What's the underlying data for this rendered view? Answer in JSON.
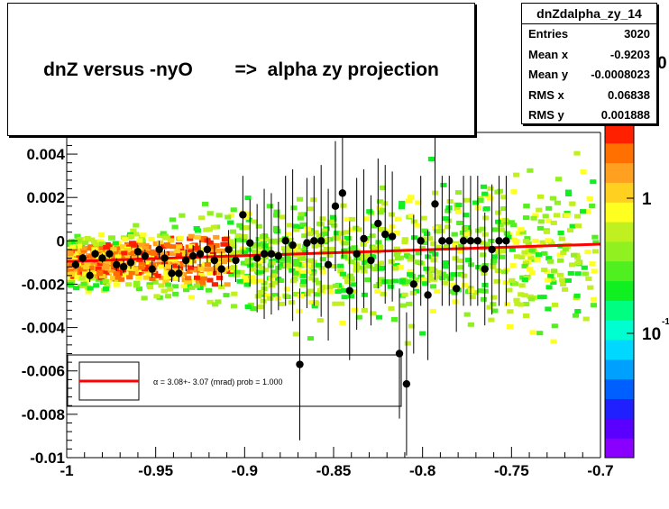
{
  "title": "dnZ versus -nyO        =>  alpha zy projection",
  "stats": {
    "name": "dnZdalpha_zy_14",
    "rows": [
      {
        "label": "Entries",
        "value": "3020"
      },
      {
        "label": "Mean x",
        "value": "-0.9203"
      },
      {
        "label": "Mean y",
        "value": "-0.0008023"
      },
      {
        "label": "RMS x",
        "value": "0.06838"
      },
      {
        "label": "RMS y",
        "value": "0.001888"
      }
    ]
  },
  "colors": {
    "fit_line": "#ff0000",
    "points": "#000000",
    "palette": [
      "#8a00ff",
      "#5a00ff",
      "#2020ff",
      "#0060ff",
      "#00a0ff",
      "#00d8ff",
      "#00ffd0",
      "#00ff80",
      "#10f020",
      "#50f020",
      "#90f020",
      "#c0f020",
      "#ffff20",
      "#ffd020",
      "#ffa020",
      "#ff7000",
      "#ff2000"
    ]
  },
  "chart_data": {
    "type": "scatter",
    "subtype": "2D histogram (colz) with profile points and linear fit",
    "xlim": [
      -1,
      -0.7
    ],
    "ylim": [
      -0.01,
      0.005
    ],
    "xticks": [
      -1,
      -0.95,
      -0.9,
      -0.85,
      -0.8,
      -0.75,
      -0.7
    ],
    "xtick_labels": [
      "-1",
      "-0.95",
      "-0.9",
      "-0.85",
      "-0.8",
      "-0.75",
      "-0.7"
    ],
    "yticks": [
      -0.01,
      -0.008,
      -0.006,
      -0.004,
      -0.002,
      0,
      0.002,
      0.004
    ],
    "ytick_labels": [
      "-0.01",
      "-0.008",
      "-0.006",
      "-0.004",
      "-0.002",
      "0",
      "0.002",
      "0.004"
    ],
    "colz_labels": [
      "1",
      "10"
    ],
    "colz_partial_labels": [
      "0",
      "-1"
    ],
    "profile": {
      "x": [
        -0.995,
        -0.991,
        -0.987,
        -0.984,
        -0.98,
        -0.976,
        -0.972,
        -0.968,
        -0.964,
        -0.96,
        -0.956,
        -0.952,
        -0.948,
        -0.945,
        -0.941,
        -0.937,
        -0.933,
        -0.929,
        -0.925,
        -0.921,
        -0.917,
        -0.913,
        -0.909,
        -0.905,
        -0.901,
        -0.897,
        -0.893,
        -0.889,
        -0.885,
        -0.881,
        -0.877,
        -0.873,
        -0.869,
        -0.865,
        -0.861,
        -0.857,
        -0.853,
        -0.849,
        -0.845,
        -0.841,
        -0.837,
        -0.833,
        -0.829,
        -0.825,
        -0.821,
        -0.817,
        -0.813,
        -0.809,
        -0.805,
        -0.801,
        -0.797,
        -0.793,
        -0.789,
        -0.785,
        -0.781,
        -0.777,
        -0.773,
        -0.769,
        -0.765,
        -0.761,
        -0.757,
        -0.753
      ],
      "y": [
        -0.0011,
        -0.0008,
        -0.0016,
        -0.0006,
        -0.0008,
        -0.0006,
        -0.0011,
        -0.0012,
        -0.001,
        -0.0005,
        -0.0007,
        -0.0013,
        -0.0004,
        -0.0008,
        -0.0015,
        -0.0015,
        -0.0009,
        -0.0007,
        -0.0006,
        -0.0004,
        -0.0009,
        -0.0013,
        -0.0004,
        -0.0009,
        0.0012,
        -0.0001,
        -0.0008,
        -0.0006,
        -0.0006,
        -0.0007,
        0.0,
        -0.0002,
        -0.0057,
        -0.0001,
        0.0,
        0.0,
        -0.0011,
        0.0016,
        0.0022,
        -0.0023,
        -0.0006,
        0.0001,
        -0.0009,
        0.0008,
        0.0003,
        0.0002,
        -0.0052,
        -0.0066,
        -0.002,
        0.0,
        -0.0025,
        0.0017,
        0.0,
        0.0,
        -0.0022,
        0.0,
        0.0,
        0.0,
        -0.0013,
        -0.0004,
        0.0,
        0.0
      ],
      "err": [
        0.0002,
        0.0002,
        0.0003,
        0.0002,
        0.0002,
        0.0002,
        0.0003,
        0.0003,
        0.0003,
        0.0003,
        0.0003,
        0.0004,
        0.0004,
        0.0004,
        0.0004,
        0.0004,
        0.0005,
        0.0005,
        0.0006,
        0.0006,
        0.0007,
        0.0008,
        0.0009,
        0.001,
        0.0018,
        0.002,
        0.0025,
        0.003,
        0.0028,
        0.0025,
        0.003,
        0.0035,
        0.0035,
        0.003,
        0.003,
        0.0035,
        0.0035,
        0.003,
        0.003,
        0.0032,
        0.0035,
        0.0032,
        0.003,
        0.003,
        0.0032,
        0.003,
        0.003,
        0.0033,
        0.0032,
        0.003,
        0.003,
        0.0035,
        0.003,
        0.003,
        0.002,
        0.003,
        0.003,
        0.003,
        0.0026,
        0.003,
        0.003,
        0.003
      ]
    },
    "fit": {
      "x": [
        -1,
        -0.7
      ],
      "y": [
        -0.00095,
        -0.00015
      ]
    },
    "legend_text": "α =    3.08+- 3.07 (mrad) prob = 1.000"
  }
}
